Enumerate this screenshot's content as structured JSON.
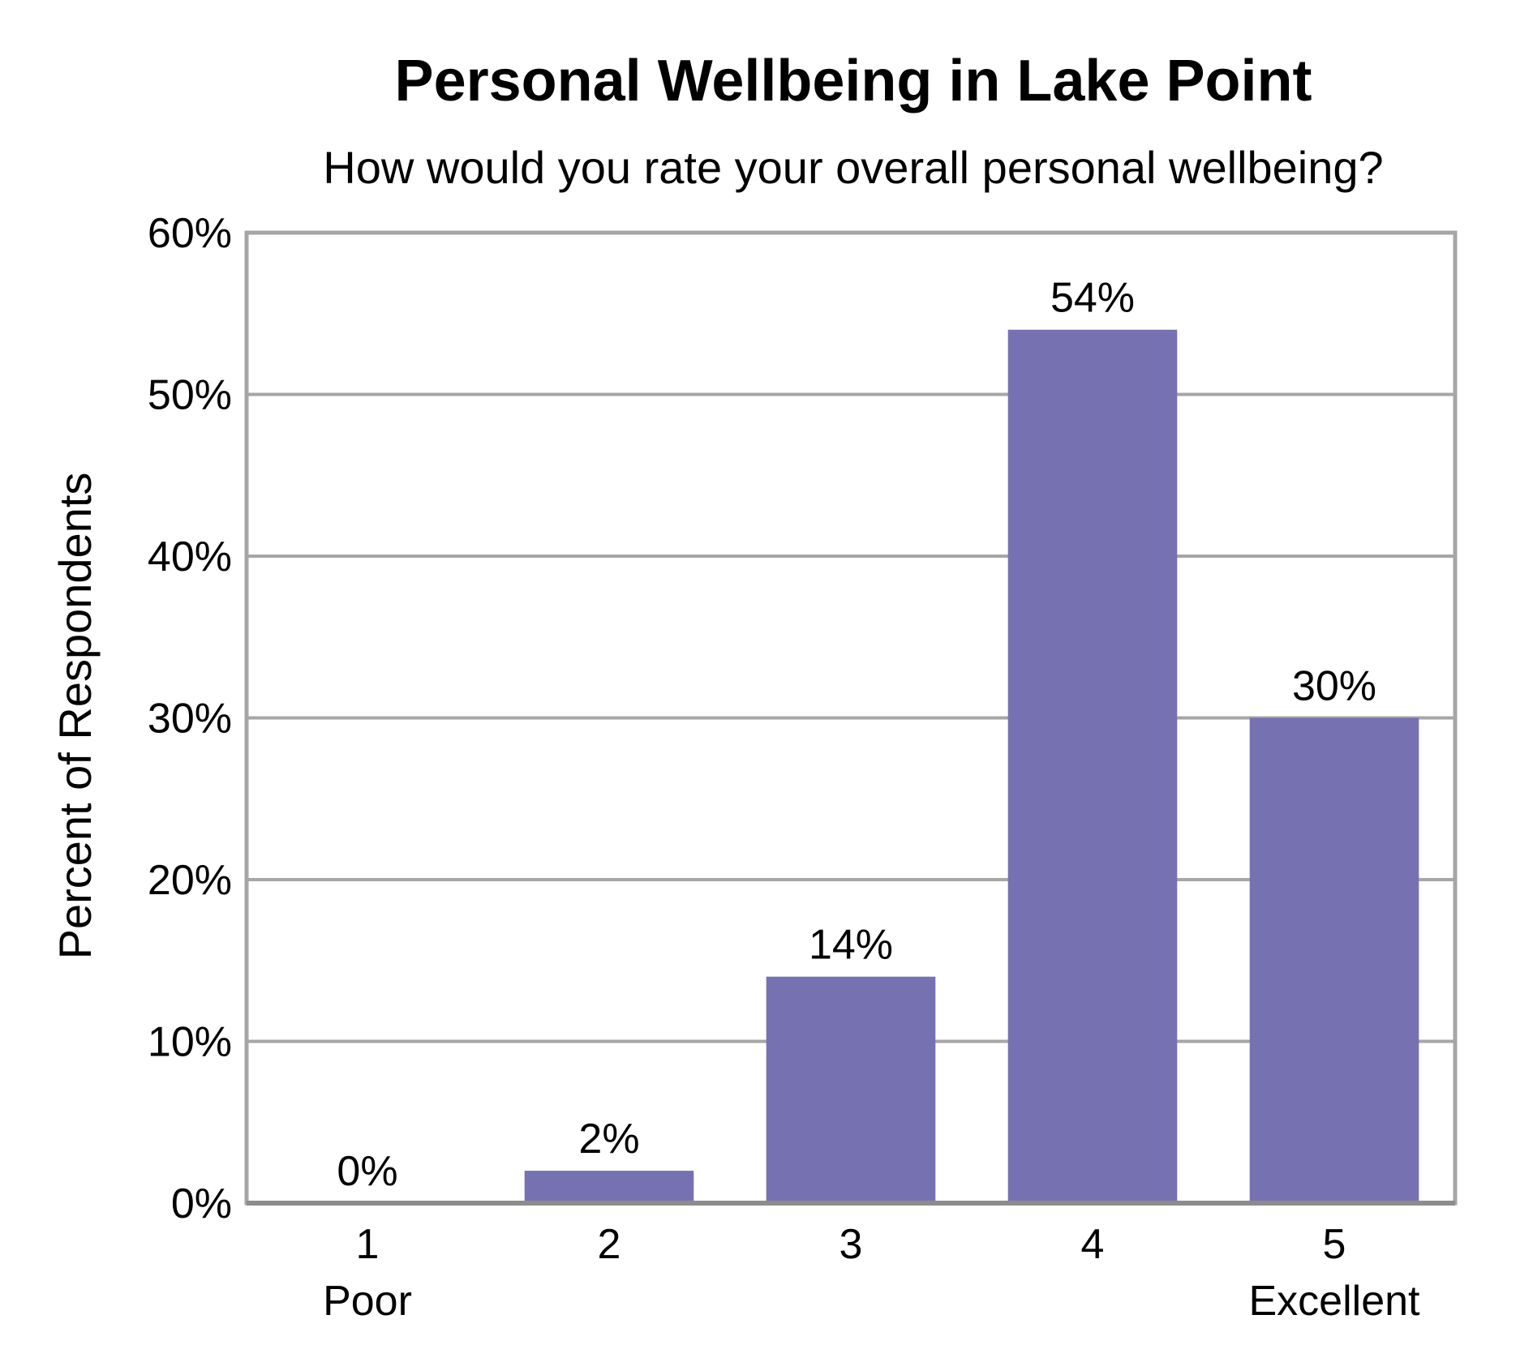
{
  "chart_data": {
    "type": "bar",
    "title": "Personal Wellbeing in Lake Point",
    "subtitle": "How would you rate your overall personal wellbeing?",
    "xlabel": "",
    "ylabel": "Percent of Respondents",
    "categories": [
      "1",
      "2",
      "3",
      "4",
      "5"
    ],
    "category_sublabels": [
      "Poor",
      "",
      "",
      "",
      "Excellent"
    ],
    "values": [
      0,
      2,
      14,
      54,
      30
    ],
    "data_labels": [
      "0%",
      "2%",
      "14%",
      "54%",
      "30%"
    ],
    "ylim": [
      0,
      60
    ],
    "yticks": [
      0,
      10,
      20,
      30,
      40,
      50,
      60
    ],
    "ytick_labels": [
      "0%",
      "10%",
      "20%",
      "30%",
      "40%",
      "50%",
      "60%"
    ],
    "grid": true,
    "legend": "none",
    "colors": {
      "bar": "#7672B1",
      "grid": "#A6A6A6",
      "frame": "#A6A6A6"
    }
  }
}
